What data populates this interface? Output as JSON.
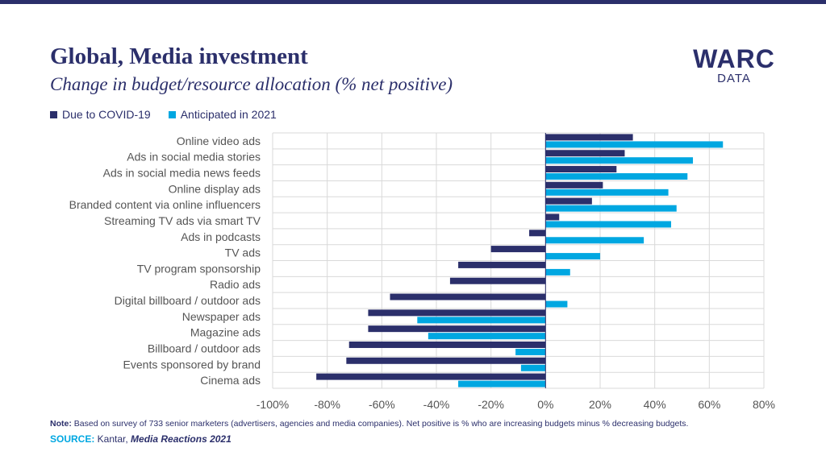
{
  "header": {
    "title": "Global, Media investment",
    "subtitle": "Change in budget/resource allocation (% net positive)"
  },
  "logo": {
    "brand": "WARC",
    "sub": "DATA"
  },
  "colors": {
    "navy": "#2b2f6b",
    "blue": "#00a7e1",
    "grid": "#d9d9d9"
  },
  "chart_data": {
    "type": "bar",
    "orientation": "horizontal",
    "categories": [
      "Online video ads",
      "Ads in social media stories",
      "Ads in social media news feeds",
      "Online display ads",
      "Branded content via online influencers",
      "Streaming TV ads via smart TV",
      "Ads in podcasts",
      "TV ads",
      "TV program sponsorship",
      "Radio ads",
      "Digital billboard / outdoor ads",
      "Newspaper ads",
      "Magazine ads",
      "Billboard / outdoor ads",
      "Events sponsored by brand",
      "Cinema ads"
    ],
    "series": [
      {
        "name": "Due to COVID-19",
        "color": "#2b2f6b",
        "values": [
          32,
          29,
          26,
          21,
          17,
          5,
          -6,
          -20,
          -32,
          -35,
          -57,
          -65,
          -65,
          -72,
          -73,
          -84
        ]
      },
      {
        "name": "Anticipated in 2021",
        "color": "#00a7e1",
        "values": [
          65,
          54,
          52,
          45,
          48,
          46,
          36,
          20,
          9,
          0,
          8,
          -47,
          -43,
          -11,
          -9,
          -32
        ]
      }
    ],
    "xlim": [
      -100,
      80
    ],
    "xticks": [
      -100,
      -80,
      -60,
      -40,
      -20,
      0,
      20,
      40,
      60,
      80
    ],
    "tick_suffix": "%",
    "grid": true,
    "legend_position": "top-left"
  },
  "footer": {
    "note_label": "Note:",
    "note_text": " Based on survey of 733 senior marketers (advertisers, agencies and media companies). Net positive is % who are increasing budgets minus % decreasing budgets.",
    "source_label": "SOURCE:",
    "source_text": " Kantar, ",
    "source_publication": "Media Reactions 2021"
  }
}
